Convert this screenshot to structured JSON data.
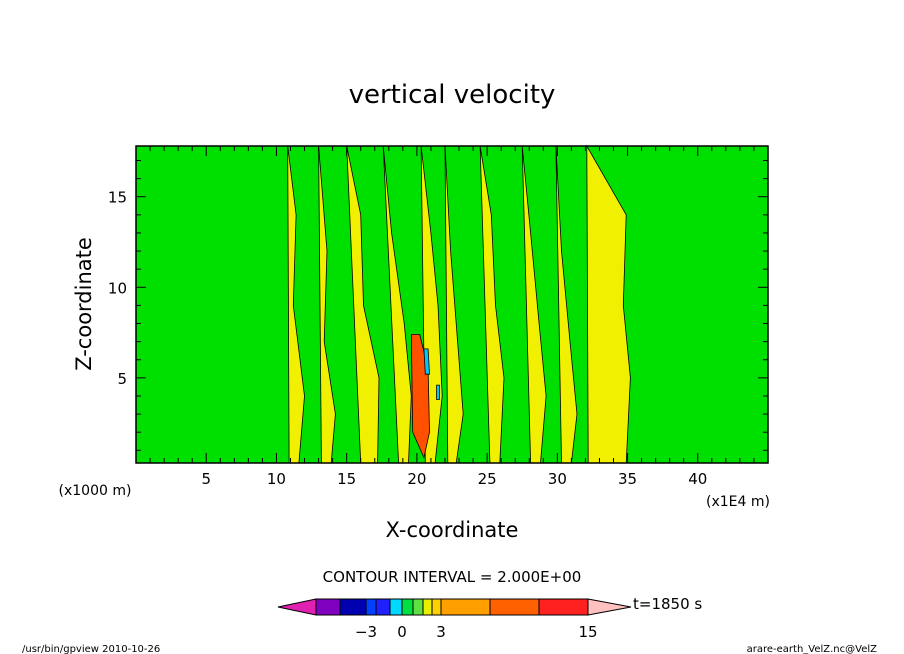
{
  "chart_data": {
    "type": "heatmap",
    "title": "vertical velocity",
    "xlabel": "X-coordinate",
    "ylabel": "Z-coordinate",
    "x_unit_left": "(x1000 m)",
    "x_unit_right": "(x1E4 m)",
    "xlim": [
      0,
      45
    ],
    "ylim": [
      0.3,
      17.8
    ],
    "x_ticks": [
      5,
      10,
      15,
      20,
      25,
      30,
      35,
      40
    ],
    "y_ticks": [
      5,
      10,
      15
    ],
    "x_tick_labels": [
      "5",
      "10",
      "15",
      "20",
      "25",
      "30",
      "35",
      "40"
    ],
    "y_tick_labels": [
      "5",
      "10",
      "15"
    ],
    "contour_interval_text": "CONTOUR INTERVAL = 2.000E+00",
    "time_label": "t=1850 s",
    "colorbar": {
      "tick_labels": [
        "−3",
        "0",
        "3",
        "15"
      ],
      "tick_values": [
        -3,
        0,
        3,
        15
      ],
      "colors": [
        "#e020b0",
        "#8000c0",
        "#0000b0",
        "#0040ff",
        "#2020ff",
        "#00d8ff",
        "#00e040",
        "#60e040",
        "#e8f000",
        "#ffd000",
        "#ffa000",
        "#ff6000",
        "#ff2020",
        "#ff7878",
        "#ffc0c0"
      ]
    },
    "fill_colors": {
      "background": "#00e000",
      "positive": "#f0f000",
      "strong_positive": "#ff5000",
      "negative": "#00c8ff"
    },
    "regions": [
      {
        "level": "positive",
        "x": [
          10.8,
          11.4,
          11.2,
          12.0,
          11.6,
          10.9
        ],
        "z": [
          17.8,
          14.0,
          9.0,
          4.0,
          0.3,
          0.3
        ]
      },
      {
        "level": "positive",
        "x": [
          13.0,
          13.6,
          13.4,
          14.2,
          13.9,
          13.2
        ],
        "z": [
          17.8,
          12.0,
          7.0,
          3.0,
          0.3,
          0.3
        ]
      },
      {
        "level": "positive",
        "x": [
          15.0,
          16.0,
          16.2,
          17.3,
          17.2,
          16.0
        ],
        "z": [
          17.8,
          14.0,
          9.0,
          5.0,
          0.3,
          0.3
        ]
      },
      {
        "level": "positive",
        "x": [
          17.6,
          18.2,
          19.1,
          19.6,
          19.4,
          18.7
        ],
        "z": [
          17.8,
          13.0,
          8.0,
          4.0,
          0.3,
          0.3
        ]
      },
      {
        "level": "positive",
        "x": [
          20.3,
          21.0,
          21.5,
          21.8,
          21.3,
          20.6
        ],
        "z": [
          17.8,
          13.0,
          9.0,
          4.0,
          0.3,
          0.3
        ]
      },
      {
        "level": "positive",
        "x": [
          22.0,
          22.4,
          22.9,
          23.3,
          22.8,
          22.2
        ],
        "z": [
          17.8,
          12.0,
          7.0,
          3.0,
          0.3,
          0.3
        ]
      },
      {
        "level": "positive",
        "x": [
          24.5,
          25.3,
          25.6,
          26.2,
          25.9,
          25.2
        ],
        "z": [
          17.8,
          14.0,
          9.0,
          5.0,
          0.3,
          0.3
        ]
      },
      {
        "level": "positive",
        "x": [
          27.5,
          28.1,
          28.7,
          29.2,
          28.8,
          28.1
        ],
        "z": [
          17.8,
          13.0,
          8.0,
          4.0,
          0.3,
          0.3
        ]
      },
      {
        "level": "positive",
        "x": [
          29.9,
          30.3,
          30.9,
          31.4,
          31.0,
          30.3
        ],
        "z": [
          17.8,
          12.0,
          7.0,
          3.0,
          0.3,
          0.3
        ]
      },
      {
        "level": "positive",
        "x": [
          32.1,
          34.9,
          34.7,
          35.2,
          34.9,
          32.2
        ],
        "z": [
          17.8,
          14.0,
          9.0,
          5.0,
          0.3,
          0.3
        ]
      },
      {
        "level": "strong_positive",
        "x": [
          19.6,
          20.2,
          20.8,
          20.9,
          20.5,
          19.7
        ],
        "z": [
          7.4,
          7.4,
          5.5,
          2.0,
          0.6,
          2.0
        ]
      },
      {
        "level": "negative",
        "x": [
          20.5,
          20.8,
          20.9,
          20.6
        ],
        "z": [
          6.6,
          6.6,
          5.2,
          5.2
        ]
      },
      {
        "level": "negative",
        "x": [
          21.4,
          21.6,
          21.6,
          21.4
        ],
        "z": [
          4.6,
          4.6,
          3.8,
          3.8
        ]
      }
    ]
  },
  "footer": {
    "left": "/usr/bin/gpview  2010-10-26",
    "right": "arare-earth_VelZ.nc@VelZ"
  }
}
